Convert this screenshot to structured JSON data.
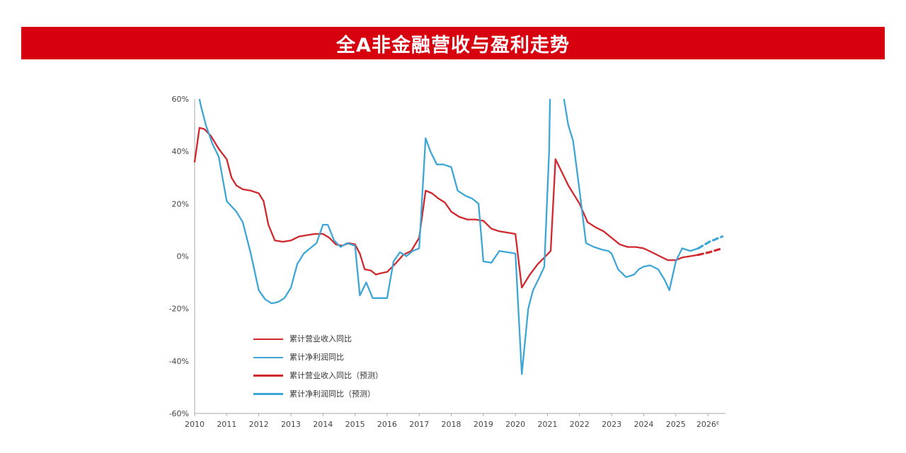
{
  "header": {
    "title": "全A非金融营收与盈利走势",
    "banner_color": "#d7000f"
  },
  "chart_data": {
    "type": "line",
    "title": "全A非金融营收与盈利走势",
    "xlabel": "",
    "ylabel": "",
    "ylim": [
      -60,
      60
    ],
    "xlim": [
      2010,
      2026.55
    ],
    "grid": false,
    "legend_position": "inside-left-bottom",
    "axis_color": "#aaaaaa",
    "tick_label_color": "#444444",
    "y_ticks": [
      {
        "v": 60,
        "label": "60%"
      },
      {
        "v": 40,
        "label": "40%"
      },
      {
        "v": 20,
        "label": "20%"
      },
      {
        "v": 0,
        "label": "0%"
      },
      {
        "v": -20,
        "label": "-20%"
      },
      {
        "v": -40,
        "label": "-40%"
      },
      {
        "v": -60,
        "label": "-60%"
      }
    ],
    "x_ticks": [
      {
        "v": 2010,
        "label": "2010"
      },
      {
        "v": 2011,
        "label": "2011"
      },
      {
        "v": 2012,
        "label": "2012"
      },
      {
        "v": 2013,
        "label": "2013"
      },
      {
        "v": 2014,
        "label": "2014"
      },
      {
        "v": 2015,
        "label": "2015"
      },
      {
        "v": 2016,
        "label": "2016"
      },
      {
        "v": 2017,
        "label": "2017"
      },
      {
        "v": 2018,
        "label": "2018"
      },
      {
        "v": 2019,
        "label": "2019"
      },
      {
        "v": 2020,
        "label": "2020"
      },
      {
        "v": 2021,
        "label": "2021"
      },
      {
        "v": 2022,
        "label": "2022"
      },
      {
        "v": 2023,
        "label": "2023"
      },
      {
        "v": 2024,
        "label": "2024"
      },
      {
        "v": 2025,
        "label": "2025"
      },
      {
        "v": 2026,
        "label": "2026ᴱ"
      }
    ],
    "series": [
      {
        "key": "revenue",
        "name": "累计营业收入同比",
        "color": "#d0282e",
        "dash": false,
        "width": 2.3,
        "points": [
          [
            2010.0,
            36
          ],
          [
            2010.15,
            49
          ],
          [
            2010.3,
            48.5
          ],
          [
            2010.5,
            46
          ],
          [
            2010.75,
            41
          ],
          [
            2011.0,
            37
          ],
          [
            2011.15,
            30
          ],
          [
            2011.3,
            27
          ],
          [
            2011.5,
            25.5
          ],
          [
            2011.75,
            25
          ],
          [
            2012.0,
            24
          ],
          [
            2012.15,
            21
          ],
          [
            2012.3,
            12
          ],
          [
            2012.5,
            6
          ],
          [
            2012.75,
            5.5
          ],
          [
            2013.0,
            6
          ],
          [
            2013.25,
            7.5
          ],
          [
            2013.5,
            8
          ],
          [
            2013.75,
            8.5
          ],
          [
            2014.0,
            8.5
          ],
          [
            2014.2,
            7
          ],
          [
            2014.4,
            4.5
          ],
          [
            2014.6,
            4
          ],
          [
            2014.8,
            5
          ],
          [
            2015.0,
            4.5
          ],
          [
            2015.15,
            1
          ],
          [
            2015.3,
            -5
          ],
          [
            2015.5,
            -5.5
          ],
          [
            2015.65,
            -7
          ],
          [
            2015.8,
            -6.5
          ],
          [
            2016.0,
            -6
          ],
          [
            2016.25,
            -3
          ],
          [
            2016.5,
            0.5
          ],
          [
            2016.75,
            2
          ],
          [
            2017.0,
            7
          ],
          [
            2017.2,
            25
          ],
          [
            2017.4,
            24
          ],
          [
            2017.6,
            22
          ],
          [
            2017.8,
            20.5
          ],
          [
            2018.0,
            17
          ],
          [
            2018.25,
            15
          ],
          [
            2018.5,
            14
          ],
          [
            2018.75,
            14
          ],
          [
            2019.0,
            13.5
          ],
          [
            2019.25,
            10.5
          ],
          [
            2019.5,
            9.5
          ],
          [
            2019.75,
            9
          ],
          [
            2020.0,
            8.5
          ],
          [
            2020.2,
            -12
          ],
          [
            2020.45,
            -7
          ],
          [
            2020.7,
            -3
          ],
          [
            2020.9,
            -0.5
          ],
          [
            2021.1,
            2
          ],
          [
            2021.25,
            37
          ],
          [
            2021.45,
            32
          ],
          [
            2021.65,
            27
          ],
          [
            2021.85,
            23
          ],
          [
            2022.0,
            20
          ],
          [
            2022.25,
            13
          ],
          [
            2022.5,
            11
          ],
          [
            2022.75,
            9.5
          ],
          [
            2023.0,
            7
          ],
          [
            2023.25,
            4.5
          ],
          [
            2023.5,
            3.5
          ],
          [
            2023.75,
            3.5
          ],
          [
            2024.0,
            3
          ],
          [
            2024.25,
            1.5
          ],
          [
            2024.5,
            0
          ],
          [
            2024.75,
            -1.5
          ],
          [
            2025.0,
            -1.5
          ],
          [
            2025.2,
            -0.5
          ],
          [
            2025.45,
            0
          ],
          [
            2025.7,
            0.5
          ]
        ]
      },
      {
        "key": "profit",
        "name": "累计净利润同比",
        "color": "#3ea6d6",
        "dash": false,
        "width": 2.3,
        "points": [
          [
            2010.05,
            66
          ],
          [
            2010.2,
            57
          ],
          [
            2010.35,
            50
          ],
          [
            2010.55,
            43
          ],
          [
            2010.75,
            38
          ],
          [
            2011.0,
            21
          ],
          [
            2011.15,
            19
          ],
          [
            2011.3,
            17
          ],
          [
            2011.5,
            13
          ],
          [
            2011.75,
            1
          ],
          [
            2012.0,
            -13
          ],
          [
            2012.2,
            -16.5
          ],
          [
            2012.4,
            -18
          ],
          [
            2012.6,
            -17.5
          ],
          [
            2012.8,
            -16
          ],
          [
            2013.0,
            -12
          ],
          [
            2013.2,
            -3
          ],
          [
            2013.4,
            1
          ],
          [
            2013.6,
            3
          ],
          [
            2013.8,
            5
          ],
          [
            2014.0,
            12
          ],
          [
            2014.15,
            12
          ],
          [
            2014.35,
            6
          ],
          [
            2014.55,
            3.5
          ],
          [
            2014.75,
            5
          ],
          [
            2015.0,
            4
          ],
          [
            2015.15,
            -15
          ],
          [
            2015.35,
            -10
          ],
          [
            2015.55,
            -16
          ],
          [
            2015.75,
            -16
          ],
          [
            2016.0,
            -16
          ],
          [
            2016.2,
            -2
          ],
          [
            2016.4,
            1.5
          ],
          [
            2016.6,
            0
          ],
          [
            2016.8,
            2
          ],
          [
            2017.0,
            3
          ],
          [
            2017.2,
            45
          ],
          [
            2017.35,
            40
          ],
          [
            2017.55,
            35
          ],
          [
            2017.75,
            35
          ],
          [
            2018.0,
            34
          ],
          [
            2018.2,
            25
          ],
          [
            2018.45,
            23
          ],
          [
            2018.65,
            22
          ],
          [
            2018.85,
            20
          ],
          [
            2019.0,
            -2
          ],
          [
            2019.25,
            -2.5
          ],
          [
            2019.5,
            2
          ],
          [
            2019.75,
            1.5
          ],
          [
            2020.0,
            1
          ],
          [
            2020.2,
            -45
          ],
          [
            2020.4,
            -20
          ],
          [
            2020.55,
            -13
          ],
          [
            2020.75,
            -8
          ],
          [
            2020.9,
            -4
          ],
          [
            2021.05,
            40
          ],
          [
            2021.1,
            75
          ],
          [
            2021.35,
            75
          ],
          [
            2021.5,
            61
          ],
          [
            2021.65,
            50
          ],
          [
            2021.8,
            44
          ],
          [
            2022.0,
            25
          ],
          [
            2022.2,
            5
          ],
          [
            2022.45,
            3.5
          ],
          [
            2022.7,
            2.5
          ],
          [
            2022.9,
            2
          ],
          [
            2023.0,
            1
          ],
          [
            2023.2,
            -5
          ],
          [
            2023.45,
            -8
          ],
          [
            2023.7,
            -7
          ],
          [
            2023.85,
            -5
          ],
          [
            2024.0,
            -4
          ],
          [
            2024.2,
            -3.5
          ],
          [
            2024.45,
            -5
          ],
          [
            2024.65,
            -9
          ],
          [
            2024.8,
            -13
          ],
          [
            2025.0,
            -2
          ],
          [
            2025.2,
            3
          ],
          [
            2025.45,
            2
          ],
          [
            2025.7,
            3
          ]
        ]
      },
      {
        "key": "revenue_forecast",
        "name": "累计营业收入同比（预测）",
        "color": "#d0282e",
        "dash": true,
        "width": 3.2,
        "points": [
          [
            2025.7,
            0.5
          ],
          [
            2026.05,
            1.5
          ],
          [
            2026.45,
            3
          ]
        ]
      },
      {
        "key": "profit_forecast",
        "name": "累计净利润同比（预测）",
        "color": "#3ea6d6",
        "dash": true,
        "width": 3.2,
        "points": [
          [
            2025.7,
            3
          ],
          [
            2026.05,
            5.5
          ],
          [
            2026.45,
            7.5
          ]
        ]
      }
    ]
  }
}
